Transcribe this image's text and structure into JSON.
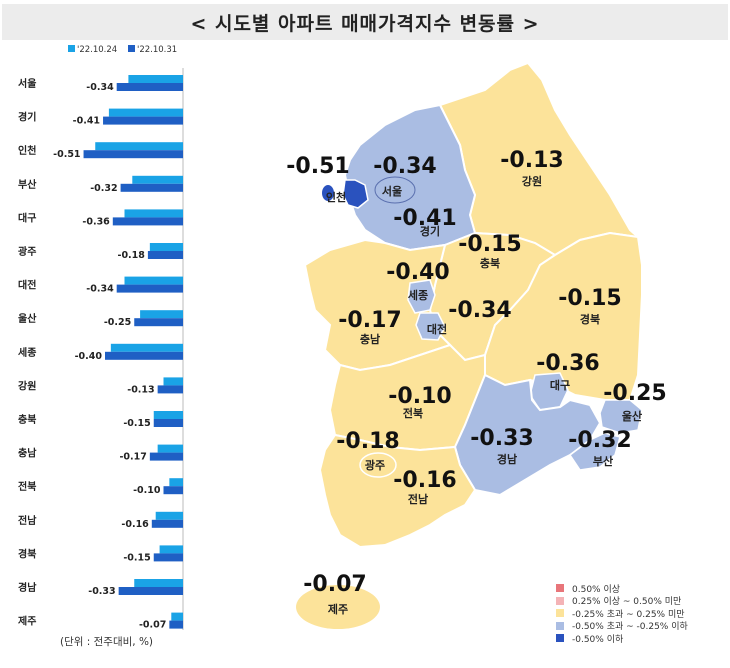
{
  "title": "< 시도별 아파트 매매가격지수 변동률 >",
  "unit_note": "(단위 : 전주대비, %)",
  "colors": {
    "series_prev": "#1aa3e6",
    "series_curr": "#1f5fc4",
    "map_yellow": "#fce39a",
    "map_blue": "#aabde3",
    "map_dark_blue": "#2a52be"
  },
  "chart_data": [
    {
      "type": "bar",
      "orientation": "horizontal",
      "categories": [
        "서울",
        "경기",
        "인천",
        "부산",
        "대구",
        "광주",
        "대전",
        "울산",
        "세종",
        "강원",
        "충북",
        "충남",
        "전북",
        "전남",
        "경북",
        "경남",
        "제주"
      ],
      "series": [
        {
          "name": "'22.10.24",
          "values": [
            -0.28,
            -0.38,
            -0.45,
            -0.26,
            -0.3,
            -0.17,
            -0.3,
            -0.22,
            -0.37,
            -0.1,
            -0.15,
            -0.13,
            -0.07,
            -0.14,
            -0.12,
            -0.25,
            -0.06
          ]
        },
        {
          "name": "'22.10.31",
          "values": [
            -0.34,
            -0.41,
            -0.51,
            -0.32,
            -0.36,
            -0.18,
            -0.34,
            -0.25,
            -0.4,
            -0.13,
            -0.15,
            -0.17,
            -0.1,
            -0.16,
            -0.15,
            -0.33,
            -0.07
          ]
        }
      ],
      "data_labels": [
        "-0.34",
        "-0.41",
        "-0.51",
        "-0.32",
        "-0.36",
        "-0.18",
        "-0.34",
        "-0.25",
        "-0.40",
        "-0.13",
        "-0.15",
        "-0.17",
        "-0.10",
        "-0.16",
        "-0.15",
        "-0.33",
        "-0.07"
      ],
      "xlim": [
        -0.55,
        0
      ]
    },
    {
      "type": "map",
      "regions": [
        {
          "name": "서울",
          "value": "-0.34",
          "class": "blue"
        },
        {
          "name": "인천",
          "value": "-0.51",
          "class": "dark_blue"
        },
        {
          "name": "경기",
          "value": "-0.41",
          "class": "blue"
        },
        {
          "name": "강원",
          "value": "-0.13",
          "class": "yellow"
        },
        {
          "name": "충북",
          "value": "-0.15",
          "class": "yellow"
        },
        {
          "name": "세종",
          "value": "-0.40",
          "class": "blue"
        },
        {
          "name": "대전",
          "value": "-0.34",
          "class": "blue"
        },
        {
          "name": "충남",
          "value": "-0.17",
          "class": "yellow"
        },
        {
          "name": "경북",
          "value": "-0.15",
          "class": "yellow"
        },
        {
          "name": "대구",
          "value": "-0.36",
          "class": "blue"
        },
        {
          "name": "울산",
          "value": "-0.25",
          "class": "blue"
        },
        {
          "name": "전북",
          "value": "-0.10",
          "class": "yellow"
        },
        {
          "name": "경남",
          "value": "-0.33",
          "class": "blue"
        },
        {
          "name": "부산",
          "value": "-0.32",
          "class": "blue"
        },
        {
          "name": "광주",
          "value": "-0.18",
          "class": "yellow"
        },
        {
          "name": "전남",
          "value": "-0.16",
          "class": "yellow"
        },
        {
          "name": "제주",
          "value": "-0.07",
          "class": "yellow"
        }
      ],
      "legend": [
        {
          "label": "0.50% 이상",
          "color": "#e8757a"
        },
        {
          "label": "0.25% 이상 ~ 0.50% 미만",
          "color": "#f4b3b6"
        },
        {
          "label": "-0.25% 초과 ~ 0.25% 미만",
          "color": "#fce39a"
        },
        {
          "label": "-0.50% 초과 ~ -0.25% 이하",
          "color": "#aabde3"
        },
        {
          "label": "-0.50% 이하",
          "color": "#2a52be"
        }
      ]
    }
  ]
}
